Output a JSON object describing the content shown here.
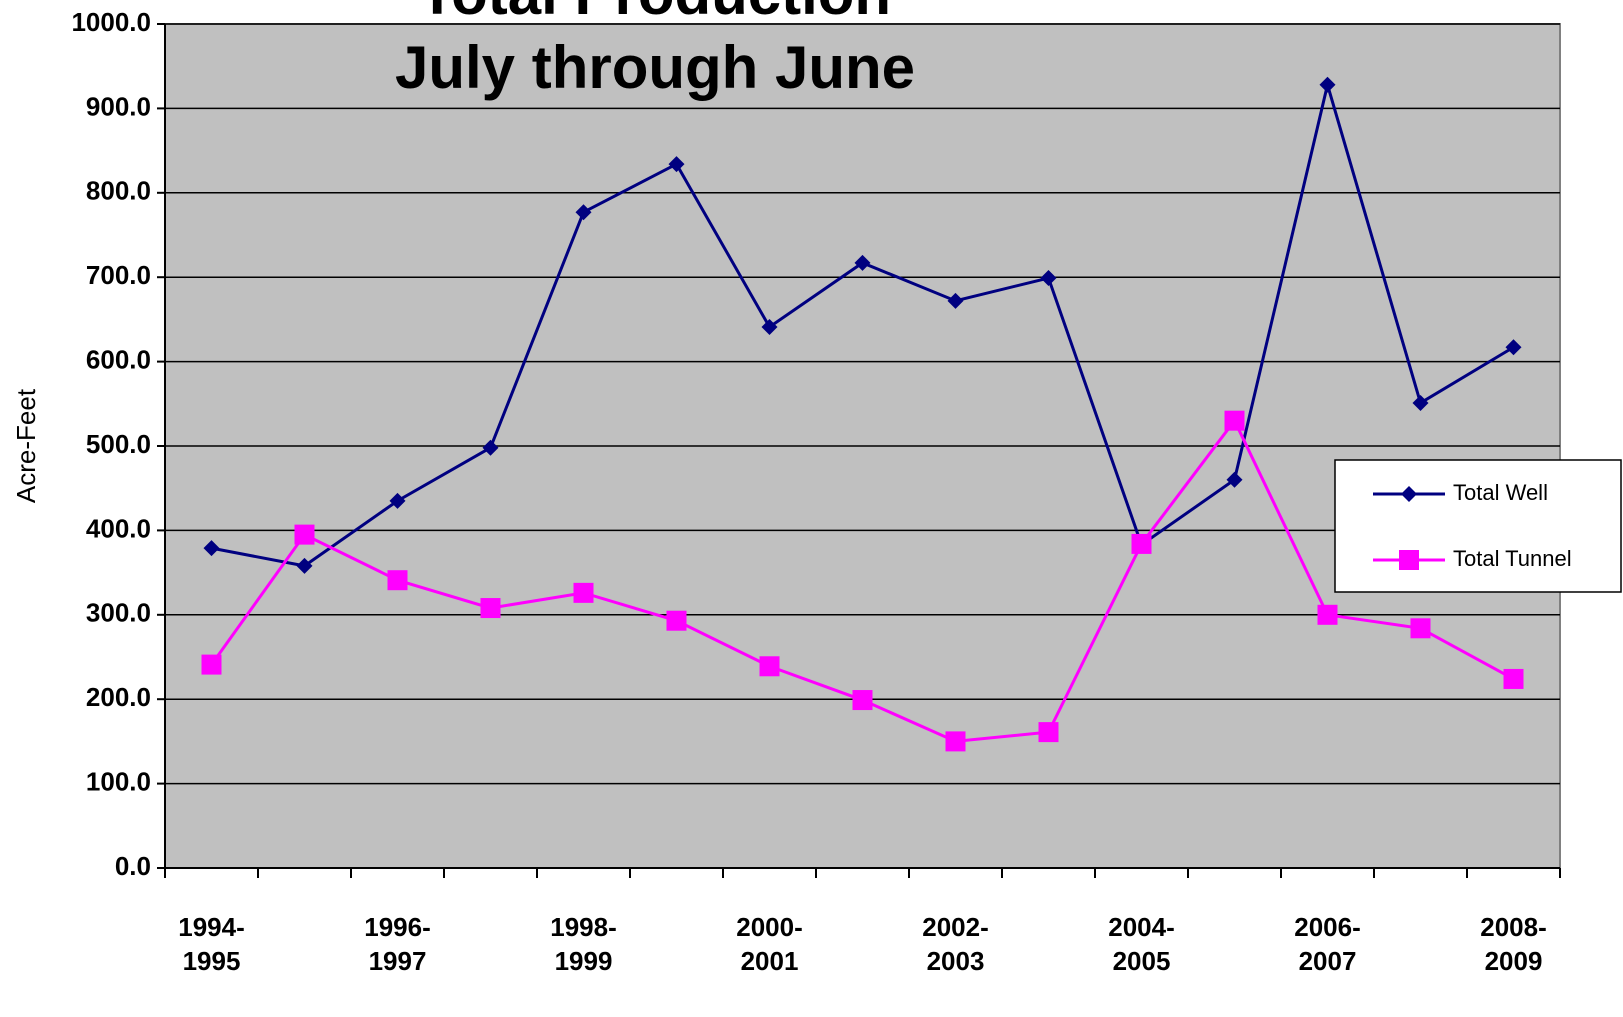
{
  "chart_data": {
    "type": "line",
    "title": "Total Production",
    "subtitle": "July through June",
    "y_label": "Acre-Feet",
    "categories": [
      "1994-\n1995",
      null,
      "1996-\n1997",
      null,
      "1998-\n1999",
      null,
      "2000-\n2001",
      null,
      "2002-\n2003",
      null,
      "2004-\n2005",
      null,
      "2006-\n2007",
      null,
      "2008-\n2009"
    ],
    "series": [
      {
        "name": "Total Well",
        "color": "#000080",
        "marker": "diamond",
        "values": [
          379,
          358,
          435,
          498,
          777,
          834,
          641,
          717,
          672,
          699,
          383,
          460,
          928,
          551,
          617
        ]
      },
      {
        "name": "Total Tunnel",
        "color": "#ff00ff",
        "marker": "square",
        "values": [
          241,
          395,
          341,
          308,
          326,
          293,
          239,
          199,
          150,
          161,
          384,
          530,
          300,
          284,
          224
        ]
      }
    ],
    "ylim": [
      0,
      1000
    ],
    "yticks": [
      {
        "value": 0,
        "label": "0.0"
      },
      {
        "value": 100,
        "label": "100.0"
      },
      {
        "value": 200,
        "label": "200.0"
      },
      {
        "value": 300,
        "label": "300.0"
      },
      {
        "value": 400,
        "label": "400.0"
      },
      {
        "value": 500,
        "label": "500.0"
      },
      {
        "value": 600,
        "label": "600.0"
      },
      {
        "value": 700,
        "label": "700.0"
      },
      {
        "value": 800,
        "label": "800.0"
      },
      {
        "value": 900,
        "label": "900.0"
      },
      {
        "value": 1000,
        "label": "1000.0"
      }
    ],
    "grid": true,
    "legend": "right",
    "background": "#c0c0c0"
  }
}
